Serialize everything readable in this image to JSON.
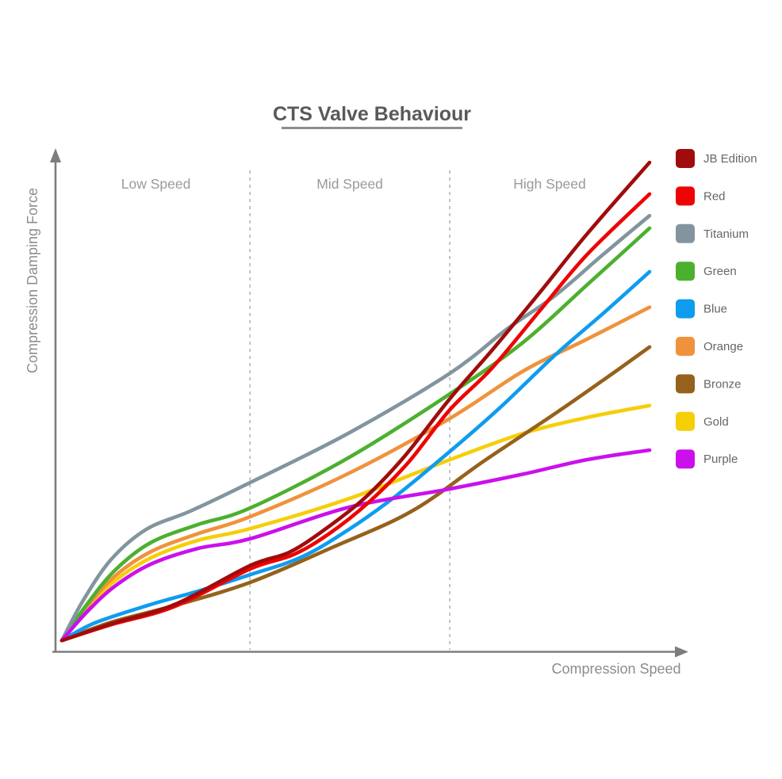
{
  "chart_data": {
    "type": "line",
    "title": "CTS Valve Behaviour",
    "xlabel": "Compression Speed",
    "ylabel": "Compression Damping Force",
    "axis_tick_labels": "none (qualitative axes, relative units 0-100)",
    "xlim": [
      0,
      100
    ],
    "ylim": [
      0,
      105
    ],
    "grid": false,
    "legend_position": "right",
    "zones": [
      {
        "label": "Low Speed",
        "x_start": 0,
        "x_end": 32
      },
      {
        "label": "Mid Speed",
        "x_start": 32,
        "x_end": 66
      },
      {
        "label": "High Speed",
        "x_start": 66,
        "x_end": 100
      }
    ],
    "series": [
      {
        "name": "JB Edition",
        "color": "#A00C0C",
        "x": [
          0,
          8.4,
          19.2,
          32,
          38.7,
          44.8,
          51.6,
          58.3,
          66,
          73.1,
          81.2,
          89.3,
          100
        ],
        "y": [
          0.3,
          3.8,
          7.8,
          15.9,
          18.7,
          23.5,
          30.1,
          38.7,
          50.7,
          60.7,
          72.7,
          85,
          100
        ]
      },
      {
        "name": "Red",
        "color": "#EE0404",
        "x": [
          0,
          8.4,
          19.2,
          32,
          39.4,
          45.5,
          52.2,
          59,
          66,
          73.1,
          81.2,
          89.3,
          100
        ],
        "y": [
          0.3,
          3.6,
          7.4,
          15.2,
          18.2,
          22.6,
          29.1,
          37.5,
          48.4,
          57,
          68.9,
          80.7,
          93.4
        ]
      },
      {
        "name": "Titanium",
        "color": "#82959F",
        "x": [
          0,
          3.6,
          8.4,
          14.4,
          21.9,
          32,
          48.9,
          66,
          75.8,
          83.9,
          92,
          100
        ],
        "y": [
          0.3,
          8.6,
          17.2,
          23.5,
          27.3,
          33.2,
          43.6,
          56,
          65.3,
          72.2,
          80.7,
          88.9
        ]
      },
      {
        "name": "Green",
        "color": "#4CB02F",
        "x": [
          0,
          4.3,
          9,
          15.1,
          23.2,
          32,
          48.9,
          66,
          78.5,
          89.3,
          100
        ],
        "y": [
          0.3,
          7.9,
          14.9,
          20.7,
          24.5,
          27.9,
          38.5,
          51.7,
          62.5,
          74.4,
          86.3
        ]
      },
      {
        "name": "Blue",
        "color": "#0E9CEF",
        "x": [
          0,
          5.7,
          15.1,
          23.2,
          32,
          40.8,
          48.9,
          57,
          66,
          74.5,
          83.9,
          92,
          100
        ],
        "y": [
          0.3,
          4,
          7.8,
          10.6,
          14,
          17.7,
          23.5,
          30.6,
          39.7,
          48.8,
          59.8,
          68.4,
          77.2
        ]
      },
      {
        "name": "Orange",
        "color": "#F0923C",
        "x": [
          0,
          4.3,
          9,
          15.1,
          23.2,
          32,
          48.9,
          66,
          78.5,
          89.3,
          100
        ],
        "y": [
          0.3,
          7.4,
          13.7,
          18.8,
          22.6,
          26.1,
          35.2,
          46.6,
          56.5,
          63.1,
          69.8
        ]
      },
      {
        "name": "Bronze",
        "color": "#96611C",
        "x": [
          0,
          8.4,
          19.2,
          32,
          46.2,
          59.6,
          71.8,
          83.9,
          92,
          100
        ],
        "y": [
          0.3,
          4.1,
          7.6,
          12.4,
          19.8,
          27.3,
          37.7,
          47.6,
          54.5,
          61.5
        ]
      },
      {
        "name": "Gold",
        "color": "#F6CE08",
        "x": [
          0,
          4.3,
          9,
          15.1,
          23.2,
          32,
          48.9,
          66,
          78.5,
          89.3,
          100
        ],
        "y": [
          0.3,
          6.9,
          12.7,
          17.5,
          21.2,
          23.6,
          29.9,
          38,
          43.5,
          46.8,
          49.3
        ]
      },
      {
        "name": "Purple",
        "color": "#CB10EC",
        "x": [
          0,
          4.3,
          9,
          15.1,
          23.2,
          32,
          48.9,
          66,
          78.5,
          89.3,
          100
        ],
        "y": [
          0.3,
          6.3,
          11.6,
          16.2,
          19.5,
          21.5,
          28.1,
          31.9,
          35,
          38,
          40
        ]
      }
    ]
  }
}
